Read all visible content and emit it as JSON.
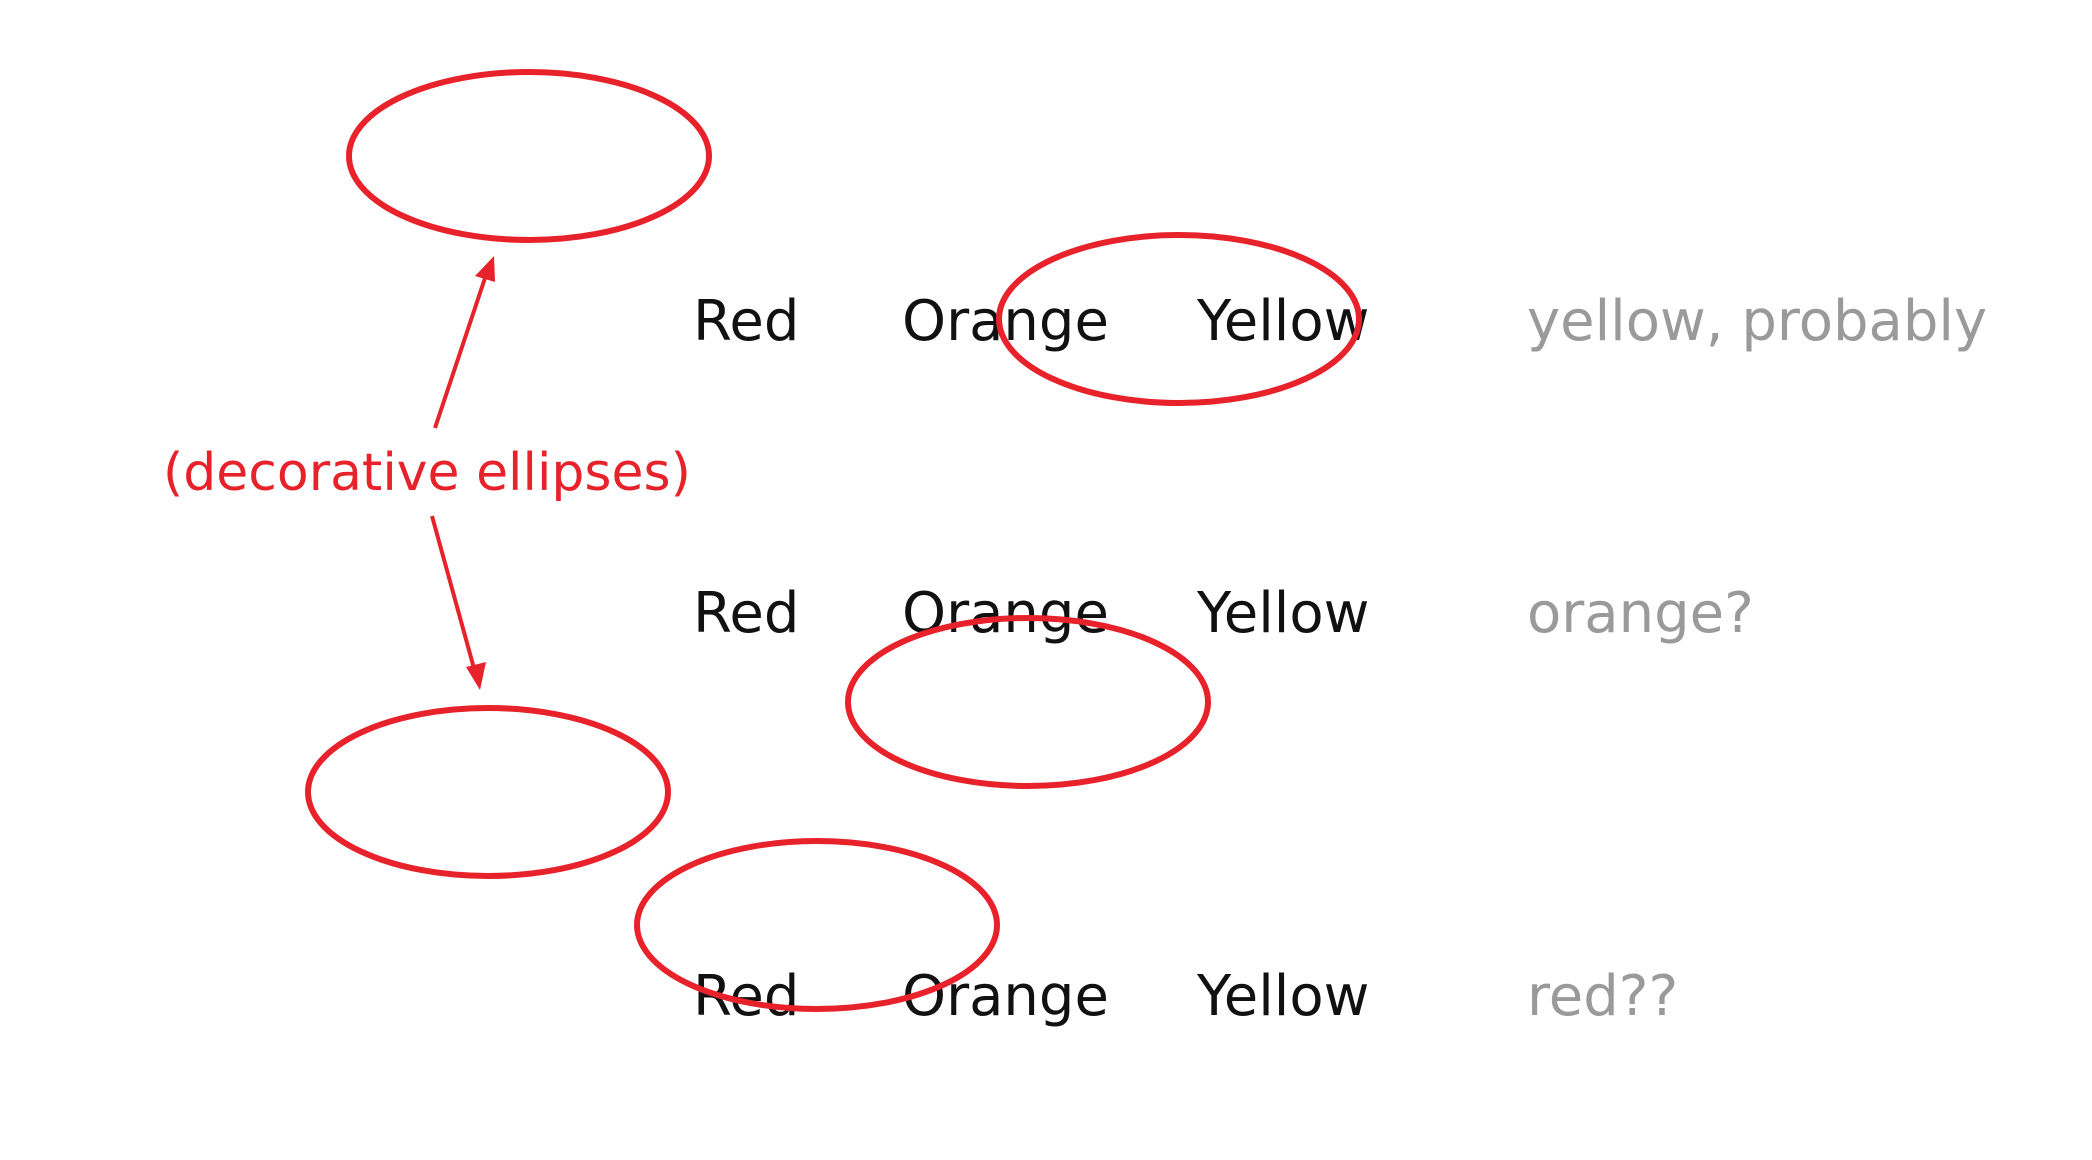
{
  "rows": [
    {
      "words": [
        "Red",
        "Orange",
        "Yellow"
      ],
      "guess": "yellow, probably"
    },
    {
      "words": [
        "Red",
        "Orange",
        "Yellow"
      ],
      "guess": "orange?"
    },
    {
      "words": [
        "Red",
        "Orange",
        "Yellow"
      ],
      "guess": "red??"
    }
  ],
  "annotation": "(decorative ellipses)",
  "colors": {
    "accent": "#e8222b",
    "text": "#111111",
    "guess": "#9a9a9a"
  }
}
